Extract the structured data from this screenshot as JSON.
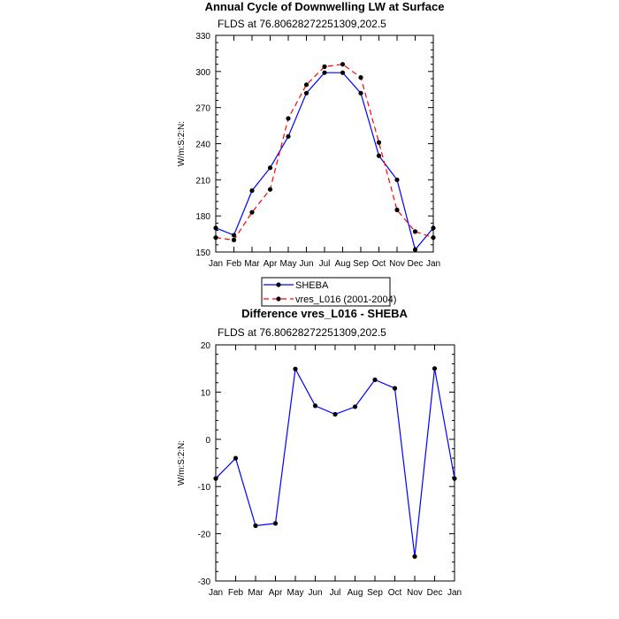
{
  "chart_data": [
    {
      "type": "line",
      "title": "Annual Cycle of Downwelling LW at Surface",
      "subtitle": "FLDS at 76.80628272251309,202.5",
      "ylabel": "W/m:S:2:N:",
      "xlabel": "",
      "categories": [
        "Jan",
        "Feb",
        "Mar",
        "Apr",
        "May",
        "Jun",
        "Jul",
        "Aug",
        "Sep",
        "Oct",
        "Nov",
        "Dec",
        "Jan"
      ],
      "ylim": [
        150,
        330
      ],
      "yticks": [
        150,
        180,
        210,
        240,
        270,
        300,
        330
      ],
      "series": [
        {
          "name": "SHEBA",
          "color": "#0000ff",
          "dash": "solid",
          "values": [
            170,
            164,
            201,
            220,
            246,
            282,
            299,
            299,
            282,
            230,
            210,
            152,
            170
          ]
        },
        {
          "name": "vres_L016 (2001-2004)",
          "color": "#ff0000",
          "dash": "dashed",
          "values": [
            162,
            160,
            183,
            202,
            261,
            289,
            304,
            306,
            295,
            241,
            185,
            167,
            162
          ]
        }
      ],
      "legend": "bottom"
    },
    {
      "type": "line",
      "title": "Difference vres_L016 - SHEBA",
      "subtitle": "FLDS at 76.80628272251309,202.5",
      "ylabel": "W/m:S:2:N:",
      "xlabel": "",
      "categories": [
        "Jan",
        "Feb",
        "Mar",
        "Apr",
        "May",
        "Jun",
        "Jul",
        "Aug",
        "Sep",
        "Oct",
        "Nov",
        "Dec",
        "Jan"
      ],
      "ylim": [
        -30,
        20
      ],
      "yticks": [
        -30,
        -20,
        -10,
        0,
        10,
        20
      ],
      "series": [
        {
          "color": "#0000ff",
          "values": [
            -8.3,
            -4,
            -18.3,
            -17.8,
            14.9,
            7.1,
            5.3,
            6.9,
            12.6,
            10.8,
            -24.8,
            15,
            -8.3
          ]
        }
      ]
    }
  ]
}
